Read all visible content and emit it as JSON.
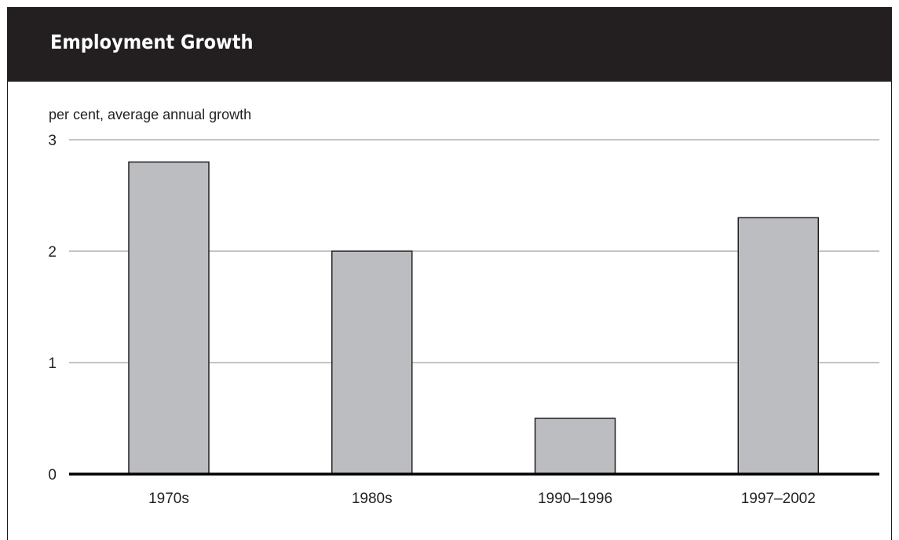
{
  "header": {
    "title": "Employment Growth"
  },
  "colors": {
    "header_bg": "#231f20",
    "bar_fill": "#bcbdc0",
    "bar_stroke": "#231f20",
    "grid": "#8a8a8a",
    "text": "#231f20"
  },
  "chart_data": {
    "type": "bar",
    "title": "Employment Growth",
    "ylabel": "per cent, average annual growth",
    "xlabel": "",
    "categories": [
      "1970s",
      "1980s",
      "1990–1996",
      "1997–2002"
    ],
    "values": [
      2.8,
      2.0,
      0.5,
      2.3
    ],
    "ylim": [
      0,
      3
    ],
    "yticks": [
      "0",
      "1",
      "2",
      "3"
    ],
    "grid": true,
    "legend": "none"
  }
}
